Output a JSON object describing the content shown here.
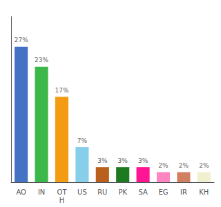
{
  "chart_data": {
    "type": "bar",
    "categories": [
      "AO",
      "IN",
      "OT\nH",
      "US",
      "RU",
      "PK",
      "SA",
      "EG",
      "IR",
      "KH"
    ],
    "values": [
      27,
      23,
      17,
      7,
      3,
      3,
      3,
      2,
      2,
      2
    ],
    "value_labels": [
      "27%",
      "23%",
      "17%",
      "7%",
      "3%",
      "3%",
      "3%",
      "2%",
      "2%",
      "2%"
    ],
    "colors": [
      "#4472c4",
      "#3cb84a",
      "#f39c12",
      "#87ceeb",
      "#b8601c",
      "#1e7a1e",
      "#ff1493",
      "#ff85c0",
      "#d08060",
      "#f0efd0"
    ],
    "ylim": [
      0,
      33
    ],
    "grid": false,
    "data_labels": true,
    "tick_labels": "x"
  }
}
